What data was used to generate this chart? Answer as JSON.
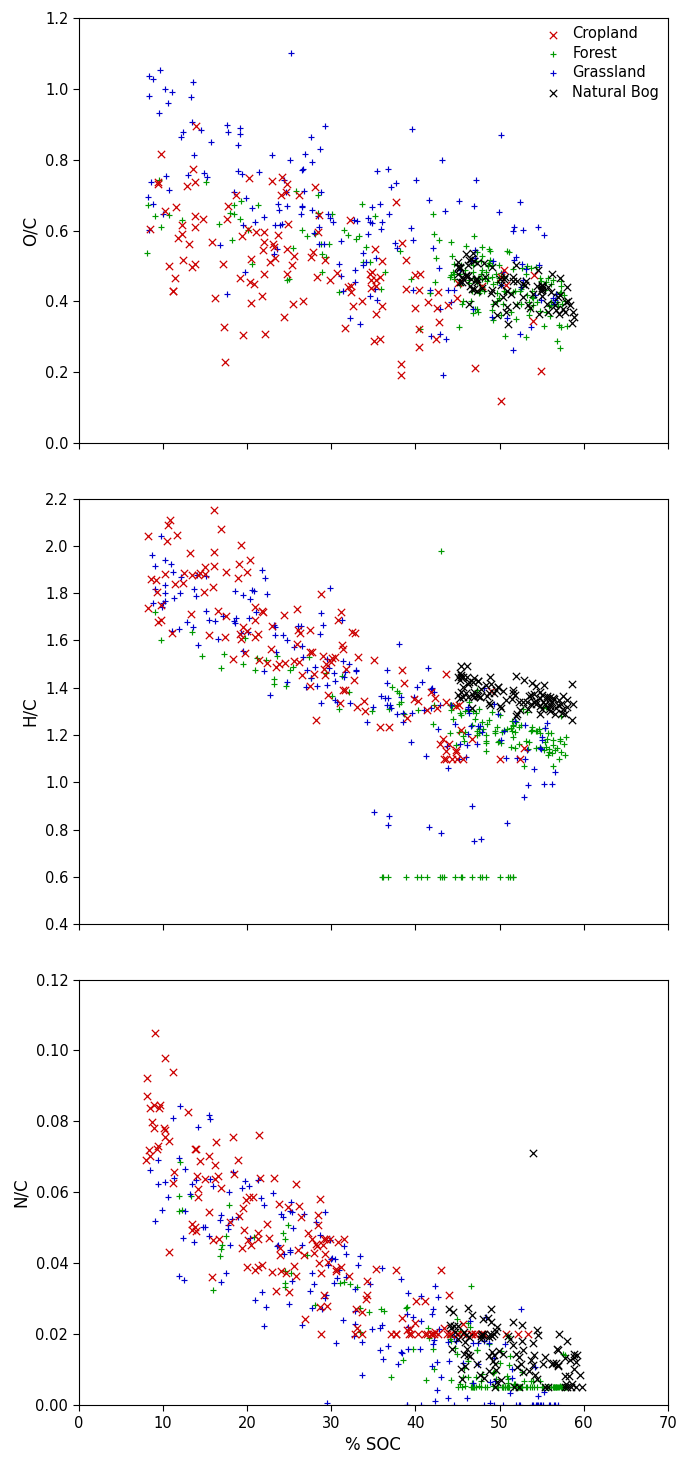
{
  "categories": [
    "Cropland",
    "Forest",
    "Grassland",
    "Natural Bog"
  ],
  "colors": [
    "#cc0000",
    "#009900",
    "#0000cc",
    "#000000"
  ],
  "markers": [
    "x",
    "+",
    "+",
    "x"
  ],
  "xlim": [
    0,
    70
  ],
  "xticks": [
    0,
    10,
    20,
    30,
    40,
    50,
    60,
    70
  ],
  "xlabel": "% SOC",
  "plot1_ylabel": "O/C",
  "plot1_ylim": [
    0.0,
    1.2
  ],
  "plot1_yticks": [
    0.0,
    0.2,
    0.4,
    0.6,
    0.8,
    1.0,
    1.2
  ],
  "plot2_ylabel": "H/C",
  "plot2_ylim": [
    0.4,
    2.2
  ],
  "plot2_yticks": [
    0.4,
    0.6,
    0.8,
    1.0,
    1.2,
    1.4,
    1.6,
    1.8,
    2.0,
    2.2
  ],
  "plot3_ylabel": "N/C",
  "plot3_ylim": [
    0.0,
    0.12
  ],
  "plot3_yticks": [
    0.0,
    0.02,
    0.04,
    0.06,
    0.08,
    0.1,
    0.12
  ],
  "legend_loc": "upper right",
  "figsize": [
    6.85,
    14.76
  ],
  "dpi": 100
}
